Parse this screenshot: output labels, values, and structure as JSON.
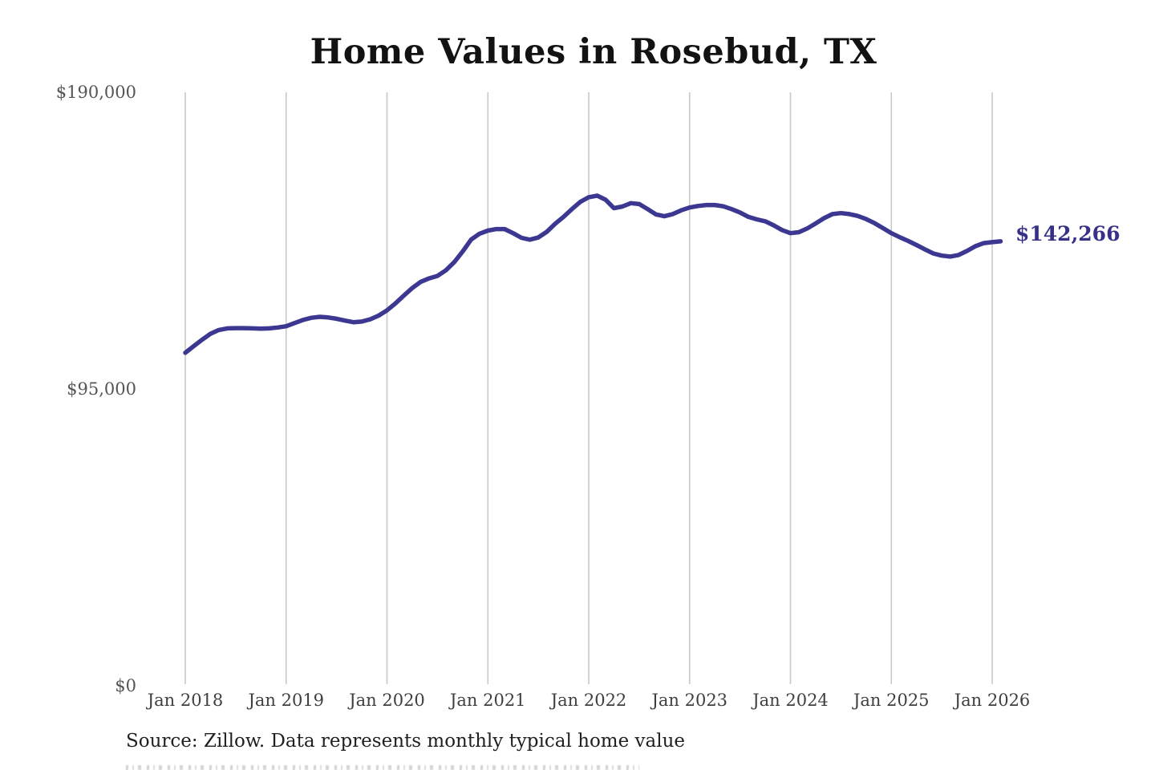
{
  "title": "Home Values in Rosebud, TX",
  "source": {
    "text": "Source: Zillow. Data represents monthly typical home value"
  },
  "chart_data": {
    "type": "line",
    "title": "Home Values in Rosebud, TX",
    "xlabel": "",
    "ylabel": "",
    "ylim": [
      0,
      190000
    ],
    "grid": "vertical-yearly-gridlines-only",
    "legend": "none",
    "line_color": "#3c3791",
    "gridline_color": "#c9c9c9",
    "end_label": {
      "text": "$142,266",
      "value": 142266,
      "color": "#363086"
    },
    "y_ticks": [
      {
        "label": "$190,000",
        "value": 190000
      },
      {
        "label": "$95,000",
        "value": 95000
      },
      {
        "label": "$0",
        "value": 0
      }
    ],
    "x_ticks": [
      {
        "label": "Jan 2018"
      },
      {
        "label": "Jan 2019"
      },
      {
        "label": "Jan 2020"
      },
      {
        "label": "Jan 2021"
      },
      {
        "label": "Jan 2022"
      },
      {
        "label": "Jan 2023"
      },
      {
        "label": "Jan 2024"
      },
      {
        "label": "Jan 2025"
      },
      {
        "label": "Jan 2026"
      }
    ],
    "series": [
      {
        "name": "Typical home value (USD)",
        "frequency": "monthly",
        "start_month": "2018-01",
        "end_month": "2026-02",
        "values_by_year": [
          {
            "year": 2018,
            "values": [
              106600,
              108700,
              110800,
              112700,
              113900,
              114400,
              114500,
              114500,
              114400,
              114300,
              114400,
              114700
            ]
          },
          {
            "year": 2019,
            "values": [
              115100,
              116100,
              117100,
              117800,
              118100,
              117900,
              117500,
              116900,
              116400,
              116600,
              117300,
              118500
            ]
          },
          {
            "year": 2020,
            "values": [
              120200,
              122400,
              124900,
              127300,
              129300,
              130400,
              131200,
              133000,
              135600,
              139000,
              142800,
              144700
            ]
          },
          {
            "year": 2021,
            "values": [
              145700,
              146200,
              146200,
              144900,
              143400,
              142800,
              143500,
              145300,
              147900,
              150100,
              152600,
              154900
            ]
          },
          {
            "year": 2022,
            "values": [
              156400,
              156900,
              155600,
              152900,
              153400,
              154500,
              154200,
              152600,
              150900,
              150300,
              151000,
              152200
            ]
          },
          {
            "year": 2023,
            "values": [
              153100,
              153600,
              153900,
              153900,
              153500,
              152600,
              151500,
              150100,
              149300,
              148700,
              147400,
              145900
            ]
          },
          {
            "year": 2024,
            "values": [
              144900,
              145200,
              146400,
              148000,
              149700,
              151000,
              151300,
              151000,
              150400,
              149400,
              148100,
              146500
            ]
          },
          {
            "year": 2025,
            "values": [
              144900,
              143600,
              142400,
              141100,
              139700,
              138400,
              137700,
              137400,
              137900,
              139200,
              140700,
              141700
            ]
          },
          {
            "year": 2026,
            "values": [
              142000,
              142266
            ]
          }
        ]
      }
    ]
  }
}
